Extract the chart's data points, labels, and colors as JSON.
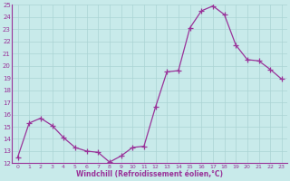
{
  "x": [
    0,
    1,
    2,
    3,
    4,
    5,
    6,
    7,
    8,
    9,
    10,
    11,
    12,
    13,
    14,
    15,
    16,
    17,
    18,
    19,
    20,
    21,
    22,
    23
  ],
  "y": [
    12.5,
    15.3,
    15.7,
    15.1,
    14.1,
    13.3,
    13.0,
    12.9,
    12.1,
    12.6,
    13.3,
    13.4,
    16.6,
    19.5,
    19.6,
    23.1,
    24.5,
    24.9,
    24.2,
    21.7,
    20.5,
    20.4,
    19.7,
    18.9
  ],
  "line_color": "#993399",
  "marker": "+",
  "marker_size": 4,
  "bg_color": "#c8eaea",
  "grid_color": "#aad4d4",
  "xlabel": "Windchill (Refroidissement éolien,°C)",
  "xlabel_color": "#993399",
  "tick_color": "#993399",
  "ylim": [
    12,
    25
  ],
  "xlim": [
    -0.5,
    23.5
  ],
  "yticks": [
    12,
    13,
    14,
    15,
    16,
    17,
    18,
    19,
    20,
    21,
    22,
    23,
    24,
    25
  ],
  "xticks": [
    0,
    1,
    2,
    3,
    4,
    5,
    6,
    7,
    8,
    9,
    10,
    11,
    12,
    13,
    14,
    15,
    16,
    17,
    18,
    19,
    20,
    21,
    22,
    23
  ]
}
